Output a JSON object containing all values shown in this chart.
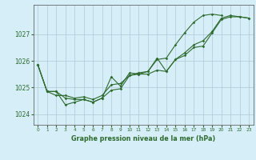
{
  "background_color": "#d6eef8",
  "grid_color": "#b0c8d8",
  "line_color": "#2d6a2d",
  "title": "Graphe pression niveau de la mer (hPa)",
  "xlim": [
    -0.5,
    23.5
  ],
  "ylim": [
    1023.6,
    1028.1
  ],
  "yticks": [
    1024,
    1025,
    1026,
    1027
  ],
  "xticks": [
    0,
    1,
    2,
    3,
    4,
    5,
    6,
    7,
    8,
    9,
    10,
    11,
    12,
    13,
    14,
    15,
    16,
    17,
    18,
    19,
    20,
    21,
    22,
    23
  ],
  "series1": [
    1025.85,
    1024.85,
    1024.85,
    1024.6,
    1024.55,
    1024.55,
    1024.45,
    1024.6,
    1024.9,
    1024.95,
    1025.45,
    1025.5,
    1025.5,
    1025.65,
    1025.6,
    1026.05,
    1026.2,
    1026.5,
    1026.55,
    1027.05,
    1027.55,
    1027.65,
    1027.65,
    1027.6
  ],
  "series2": [
    1025.85,
    1024.85,
    1024.85,
    1024.35,
    1024.45,
    1024.55,
    1024.45,
    1024.6,
    1025.4,
    1025.05,
    1025.55,
    1025.5,
    1025.6,
    1026.1,
    1025.6,
    1026.05,
    1026.3,
    1026.6,
    1026.75,
    1027.1,
    1027.6,
    1027.7,
    1027.65,
    1027.6
  ],
  "series3": [
    1025.85,
    1024.85,
    1024.7,
    1024.7,
    1024.6,
    1024.65,
    1024.55,
    1024.7,
    1025.1,
    1025.15,
    1025.45,
    1025.55,
    1025.6,
    1026.05,
    1026.1,
    1026.6,
    1027.05,
    1027.45,
    1027.7,
    1027.75,
    1027.7,
    null,
    null,
    null
  ]
}
